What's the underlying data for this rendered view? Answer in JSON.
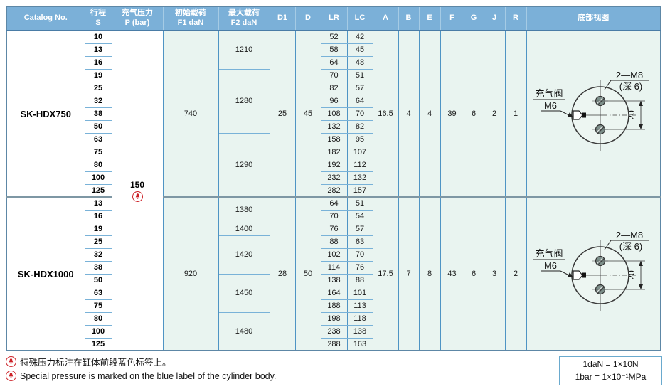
{
  "table": {
    "columns": [
      {
        "id": "catalog",
        "l1": "Catalog No.",
        "l2": ""
      },
      {
        "id": "s",
        "l1": "行程",
        "l2": "S"
      },
      {
        "id": "p",
        "l1": "充气压力",
        "l2": "P (bar)"
      },
      {
        "id": "f1",
        "l1": "初始载荷",
        "l2": "F1 daN"
      },
      {
        "id": "f2",
        "l1": "最大载荷",
        "l2": "F2 daN"
      },
      {
        "id": "d1",
        "l1": "D1",
        "l2": ""
      },
      {
        "id": "d",
        "l1": "D",
        "l2": ""
      },
      {
        "id": "lr",
        "l1": "LR",
        "l2": ""
      },
      {
        "id": "lc",
        "l1": "LC",
        "l2": ""
      },
      {
        "id": "a",
        "l1": "A",
        "l2": ""
      },
      {
        "id": "b",
        "l1": "B",
        "l2": ""
      },
      {
        "id": "e",
        "l1": "E",
        "l2": ""
      },
      {
        "id": "f",
        "l1": "F",
        "l2": ""
      },
      {
        "id": "g",
        "l1": "G",
        "l2": ""
      },
      {
        "id": "j",
        "l1": "J",
        "l2": ""
      },
      {
        "id": "r",
        "l1": "R",
        "l2": ""
      },
      {
        "id": "view",
        "l1": "底部视图",
        "l2": ""
      }
    ]
  },
  "pressure": {
    "value": "150"
  },
  "blocks": [
    {
      "catalog": "SK-HDX750",
      "f1": "740",
      "f2_groups": [
        {
          "value": "1210",
          "span": 3
        },
        {
          "value": "1280",
          "span": 5
        },
        {
          "value": "1290",
          "span": 5
        }
      ],
      "rows": [
        {
          "s": "10",
          "lr": "52",
          "lc": "42"
        },
        {
          "s": "13",
          "lr": "58",
          "lc": "45"
        },
        {
          "s": "16",
          "lr": "64",
          "lc": "48"
        },
        {
          "s": "19",
          "lr": "70",
          "lc": "51"
        },
        {
          "s": "25",
          "lr": "82",
          "lc": "57"
        },
        {
          "s": "32",
          "lr": "96",
          "lc": "64"
        },
        {
          "s": "38",
          "lr": "108",
          "lc": "70"
        },
        {
          "s": "50",
          "lr": "132",
          "lc": "82"
        },
        {
          "s": "63",
          "lr": "158",
          "lc": "95"
        },
        {
          "s": "75",
          "lr": "182",
          "lc": "107"
        },
        {
          "s": "80",
          "lr": "192",
          "lc": "112"
        },
        {
          "s": "100",
          "lr": "232",
          "lc": "132"
        },
        {
          "s": "125",
          "lr": "282",
          "lc": "157"
        }
      ],
      "dims": {
        "d1": "25",
        "d": "45",
        "a": "16.5",
        "b": "4",
        "e": "4",
        "f": "39",
        "g": "6",
        "j": "2",
        "r": "1"
      }
    },
    {
      "catalog": "SK-HDX1000",
      "f1": "920",
      "f2_groups": [
        {
          "value": "1380",
          "span": 2
        },
        {
          "value": "1400",
          "span": 1
        },
        {
          "value": "1420",
          "span": 3
        },
        {
          "value": "1450",
          "span": 3
        },
        {
          "value": "1480",
          "span": 3
        }
      ],
      "rows": [
        {
          "s": "13",
          "lr": "64",
          "lc": "51"
        },
        {
          "s": "16",
          "lr": "70",
          "lc": "54"
        },
        {
          "s": "19",
          "lr": "76",
          "lc": "57"
        },
        {
          "s": "25",
          "lr": "88",
          "lc": "63"
        },
        {
          "s": "32",
          "lr": "102",
          "lc": "70"
        },
        {
          "s": "38",
          "lr": "114",
          "lc": "76"
        },
        {
          "s": "50",
          "lr": "138",
          "lc": "88"
        },
        {
          "s": "63",
          "lr": "164",
          "lc": "101"
        },
        {
          "s": "75",
          "lr": "188",
          "lc": "113"
        },
        {
          "s": "80",
          "lr": "198",
          "lc": "118"
        },
        {
          "s": "100",
          "lr": "238",
          "lc": "138"
        },
        {
          "s": "125",
          "lr": "288",
          "lc": "163"
        }
      ],
      "dims": {
        "d1": "28",
        "d": "50",
        "a": "17.5",
        "b": "7",
        "e": "8",
        "f": "43",
        "g": "6",
        "j": "3",
        "r": "2"
      }
    }
  ],
  "diagram": {
    "valve_line1": "充气阀",
    "valve_line2": "M6",
    "holes_line1": "2—M8",
    "holes_line2": "(深 6)",
    "dim": "20"
  },
  "footnotes": [
    "特殊压力标注在缸体前段蓝色标签上。",
    "Special pressure is marked on the blue label of the cylinder body."
  ],
  "units": [
    "1daN = 1×10N",
    "1bar = 1×10⁻¹MPa"
  ],
  "colors": {
    "header_bg": "#7bb0d8",
    "cell_bg": "#e9f4f0",
    "border_blue": "#4f94c4",
    "alert_red": "#cc2127"
  }
}
